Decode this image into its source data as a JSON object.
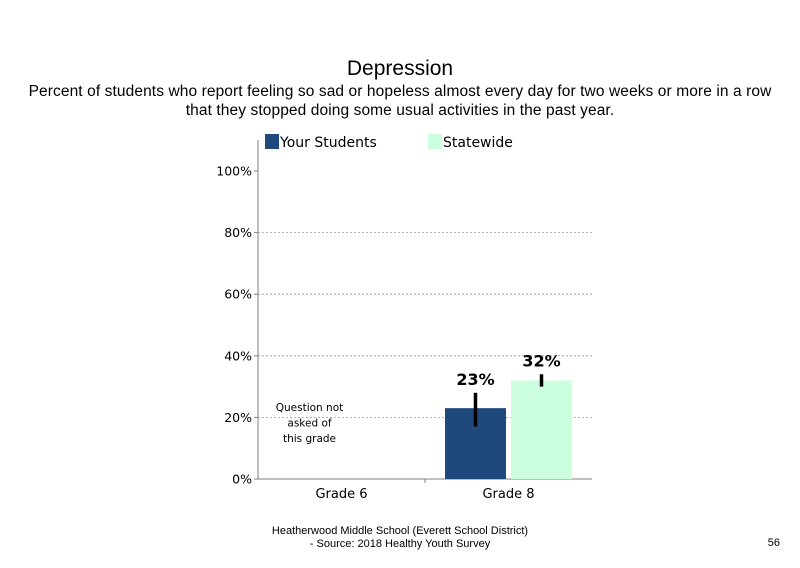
{
  "page_number": "56",
  "footer": {
    "line1": "Heatherwood Middle School (Everett School District)",
    "line2": "- Source: 2018 Healthy  Youth Survey"
  },
  "chart_data": {
    "type": "bar",
    "title": "Depression",
    "subtitle": "Percent of students who report feeling so sad or hopeless almost every day for two weeks or more in a row that they stopped doing some usual activities in the past year.",
    "categories": [
      "Grade 6",
      "Grade 8"
    ],
    "series": [
      {
        "name": "Your Students",
        "color": "#1F497D",
        "values": [
          null,
          23
        ],
        "data_labels": [
          "",
          "23%"
        ],
        "error_low": [
          null,
          17
        ],
        "error_high": [
          null,
          28
        ]
      },
      {
        "name": "Statewide",
        "color": "#CCFFDD",
        "values": [
          null,
          32
        ],
        "data_labels": [
          "",
          "32%"
        ],
        "error_low": [
          null,
          30
        ],
        "error_high": [
          null,
          34
        ]
      }
    ],
    "yticks": [
      0,
      20,
      40,
      60,
      80,
      100
    ],
    "ytick_labels": [
      "0%",
      "20%",
      "40%",
      "60%",
      "80%",
      "100%"
    ],
    "ylim": [
      0,
      100
    ],
    "grid": true,
    "legend_position": "top",
    "annotations": [
      {
        "category": "Grade 6",
        "lines": [
          "Question not",
          "asked of",
          "this grade"
        ]
      }
    ]
  }
}
